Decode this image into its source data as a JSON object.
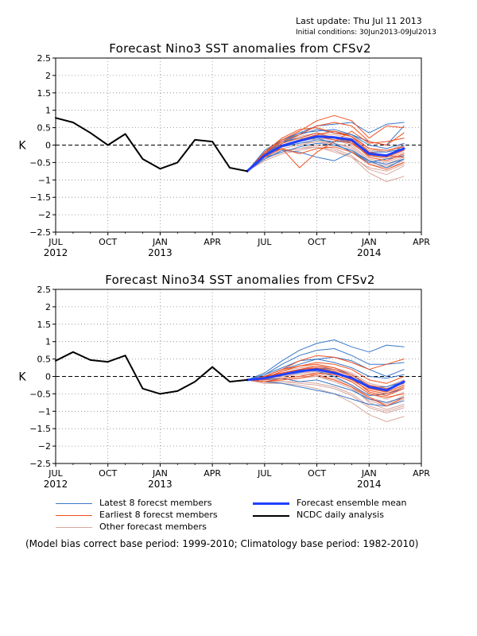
{
  "header": {
    "last_update": "Last update: Thu Jul 11 2013",
    "initial_condition": "Initial conditions: 30Jun2013-09Jul2013"
  },
  "colors": {
    "latest": "#3a78c8",
    "earliest": "#f05020",
    "other": "#d8a8a0",
    "mean": "#2040ff",
    "observed": "#000000"
  },
  "legend": {
    "latest": "Latest 8 forecst members",
    "earliest": "Earliest 8 forecst members",
    "other": "Other forecast members",
    "mean": "Forecast ensemble mean",
    "observed": "NCDC daily analysis"
  },
  "note": "(Model bias correct base period: 1999-2010; Climatology base period: 1982-2010)",
  "chart_data": [
    {
      "type": "line",
      "title": "Forecast Nino3 SST anomalies from CFSv2",
      "ylabel": "K",
      "ylim": [
        -2.5,
        2.5
      ],
      "yticks": [
        "2.5",
        "2",
        "1.5",
        "1",
        "0.5",
        "0",
        "−0.5",
        "−1",
        "−1.5",
        "−2",
        "−2.5"
      ],
      "xticks": [
        {
          "label": "JUL",
          "year": "2012"
        },
        {
          "label": "OCT",
          "year": ""
        },
        {
          "label": "JAN",
          "year": "2013"
        },
        {
          "label": "APR",
          "year": ""
        },
        {
          "label": "JUL",
          "year": ""
        },
        {
          "label": "OCT",
          "year": ""
        },
        {
          "label": "JAN",
          "year": "2014"
        },
        {
          "label": "APR",
          "year": ""
        }
      ],
      "grid": true,
      "observed": {
        "x": [
          "Jul 2012",
          "Aug 2012",
          "Sep 2012",
          "Oct 2012",
          "Nov 2012",
          "Dec 2012",
          "Jan 2013",
          "Feb 2013",
          "Mar 2013",
          "Apr 2013",
          "May 2013",
          "Jun 2013"
        ],
        "y": [
          0.78,
          0.65,
          0.35,
          0.0,
          0.32,
          -0.4,
          -0.68,
          -0.5,
          0.15,
          0.1,
          -0.65,
          -0.75
        ]
      },
      "forecast_months": [
        "Jun 2013",
        "Jul 2013",
        "Aug 2013",
        "Sep 2013",
        "Oct 2013",
        "Nov 2013",
        "Dec 2013",
        "Jan 2014",
        "Feb 2014",
        "Mar 2014"
      ],
      "mean": [
        -0.75,
        -0.3,
        -0.02,
        0.12,
        0.25,
        0.22,
        0.15,
        -0.25,
        -0.3,
        -0.1
      ],
      "latest": [
        [
          -0.75,
          -0.4,
          -0.15,
          -0.2,
          -0.35,
          -0.45,
          -0.2,
          -0.45,
          -0.65,
          -0.4
        ],
        [
          -0.75,
          -0.2,
          0.1,
          0.35,
          0.55,
          0.6,
          0.65,
          0.35,
          0.6,
          0.65
        ],
        [
          -0.75,
          -0.3,
          0.0,
          0.15,
          0.2,
          0.05,
          -0.2,
          -0.5,
          -0.4,
          -0.3
        ],
        [
          -0.75,
          -0.25,
          0.05,
          0.3,
          0.45,
          0.35,
          0.3,
          0.0,
          -0.1,
          0.05
        ],
        [
          -0.75,
          -0.35,
          -0.2,
          -0.05,
          0.05,
          0.0,
          -0.15,
          -0.45,
          -0.55,
          -0.4
        ],
        [
          -0.75,
          -0.25,
          0.1,
          0.2,
          0.35,
          0.2,
          0.05,
          -0.3,
          -0.35,
          0.0
        ],
        [
          -0.75,
          -0.3,
          -0.05,
          0.05,
          0.15,
          0.1,
          0.1,
          -0.2,
          -0.2,
          -0.1
        ],
        [
          -0.75,
          -0.15,
          0.15,
          0.35,
          0.4,
          0.45,
          0.3,
          0.1,
          0.0,
          0.55
        ]
      ],
      "earliest": [
        [
          -0.75,
          -0.25,
          0.15,
          0.4,
          0.7,
          0.85,
          0.7,
          0.2,
          0.55,
          0.5
        ],
        [
          -0.75,
          -0.2,
          0.1,
          0.3,
          0.55,
          0.65,
          0.55,
          0.1,
          0.0,
          0.35
        ],
        [
          -0.75,
          -0.3,
          0.05,
          0.2,
          0.35,
          0.2,
          0.1,
          -0.35,
          -0.45,
          -0.25
        ],
        [
          -0.75,
          -0.35,
          -0.1,
          -0.25,
          -0.1,
          -0.05,
          -0.2,
          -0.55,
          -0.7,
          -0.5
        ],
        [
          -0.75,
          -0.2,
          0.2,
          0.45,
          0.5,
          0.35,
          0.25,
          -0.1,
          -0.15,
          -0.05
        ],
        [
          -0.75,
          -0.3,
          0.0,
          0.1,
          0.25,
          0.15,
          0.05,
          -0.3,
          -0.35,
          -0.15
        ],
        [
          -0.75,
          -0.25,
          -0.1,
          -0.65,
          -0.2,
          0.1,
          0.4,
          0.05,
          0.1,
          0.2
        ],
        [
          -0.75,
          -0.3,
          -0.05,
          0.15,
          0.3,
          0.4,
          0.25,
          -0.2,
          -0.3,
          -0.35
        ]
      ],
      "other": [
        [
          -0.75,
          -0.4,
          -0.2,
          -0.1,
          0.0,
          -0.1,
          -0.3,
          -0.7,
          -0.85,
          -0.6
        ],
        [
          -0.75,
          -0.35,
          -0.05,
          0.1,
          0.2,
          0.15,
          0.0,
          -0.4,
          -0.5,
          -0.3
        ],
        [
          -0.75,
          -0.3,
          0.0,
          0.15,
          0.3,
          0.25,
          0.1,
          -0.3,
          -0.4,
          -0.2
        ],
        [
          -0.75,
          -0.45,
          -0.25,
          -0.15,
          -0.05,
          -0.15,
          -0.35,
          -0.8,
          -1.05,
          -0.9
        ],
        [
          -0.75,
          -0.25,
          0.05,
          0.25,
          0.35,
          0.3,
          0.2,
          -0.15,
          -0.2,
          0.0
        ],
        [
          -0.75,
          -0.3,
          -0.1,
          0.0,
          0.1,
          0.05,
          -0.1,
          -0.5,
          -0.6,
          -0.45
        ],
        [
          -0.75,
          -0.35,
          0.05,
          0.2,
          0.15,
          0.05,
          -0.05,
          -0.45,
          -0.55,
          -0.35
        ],
        [
          -0.75,
          -0.4,
          -0.15,
          -0.1,
          -0.05,
          -0.2,
          -0.35,
          -0.65,
          -0.75,
          -0.55
        ],
        [
          -0.75,
          -0.2,
          0.15,
          0.3,
          0.45,
          0.4,
          0.3,
          -0.1,
          -0.2,
          0.05
        ],
        [
          -0.75,
          -0.3,
          -0.05,
          0.05,
          0.1,
          0.0,
          -0.15,
          -0.55,
          -0.65,
          -0.5
        ]
      ]
    },
    {
      "type": "line",
      "title": "Forecast Nino34 SST anomalies from CFSv2",
      "ylabel": "K",
      "ylim": [
        -2.5,
        2.5
      ],
      "yticks": [
        "2.5",
        "2",
        "1.5",
        "1",
        "0.5",
        "0",
        "−0.5",
        "−1",
        "−1.5",
        "−2",
        "−2.5"
      ],
      "xticks": [
        {
          "label": "JUL",
          "year": "2012"
        },
        {
          "label": "OCT",
          "year": ""
        },
        {
          "label": "JAN",
          "year": "2013"
        },
        {
          "label": "APR",
          "year": ""
        },
        {
          "label": "JUL",
          "year": ""
        },
        {
          "label": "OCT",
          "year": ""
        },
        {
          "label": "JAN",
          "year": "2014"
        },
        {
          "label": "APR",
          "year": ""
        }
      ],
      "grid": true,
      "observed": {
        "x": [
          "Jul 2012",
          "Aug 2012",
          "Sep 2012",
          "Oct 2012",
          "Nov 2012",
          "Dec 2012",
          "Jan 2013",
          "Feb 2013",
          "Mar 2013",
          "Apr 2013",
          "May 2013",
          "Jun 2013"
        ],
        "y": [
          0.45,
          0.7,
          0.47,
          0.42,
          0.6,
          -0.35,
          -0.5,
          -0.42,
          -0.15,
          0.27,
          -0.15,
          -0.1
        ]
      },
      "forecast_months": [
        "Jun 2013",
        "Jul 2013",
        "Aug 2013",
        "Sep 2013",
        "Oct 2013",
        "Nov 2013",
        "Dec 2013",
        "Jan 2014",
        "Feb 2014",
        "Mar 2014"
      ],
      "mean": [
        -0.1,
        -0.05,
        0.05,
        0.15,
        0.2,
        0.1,
        -0.05,
        -0.3,
        -0.4,
        -0.15
      ],
      "latest": [
        [
          -0.1,
          0.1,
          0.45,
          0.75,
          0.95,
          1.05,
          0.85,
          0.7,
          0.9,
          0.85
        ],
        [
          -0.1,
          0.05,
          0.35,
          0.6,
          0.75,
          0.8,
          0.6,
          0.35,
          0.35,
          0.4
        ],
        [
          -0.1,
          -0.1,
          0.1,
          0.2,
          0.15,
          0.0,
          -0.25,
          -0.55,
          -0.5,
          -0.35
        ],
        [
          -0.1,
          0.0,
          0.2,
          0.35,
          0.5,
          0.4,
          0.25,
          0.0,
          -0.05,
          0.05
        ],
        [
          -0.1,
          -0.15,
          -0.2,
          -0.3,
          -0.4,
          -0.5,
          -0.65,
          -0.8,
          -0.85,
          -0.7
        ],
        [
          -0.1,
          -0.05,
          0.05,
          0.1,
          0.25,
          0.2,
          0.05,
          -0.3,
          -0.3,
          -0.15
        ],
        [
          -0.1,
          -0.1,
          -0.05,
          -0.15,
          -0.1,
          -0.25,
          -0.4,
          -0.65,
          -0.75,
          -0.6
        ],
        [
          -0.1,
          0.05,
          0.25,
          0.45,
          0.5,
          0.55,
          0.45,
          0.2,
          0.0,
          0.2
        ]
      ],
      "earliest": [
        [
          -0.1,
          0.0,
          0.2,
          0.45,
          0.6,
          0.55,
          0.4,
          0.2,
          0.35,
          0.5
        ],
        [
          -0.1,
          -0.05,
          0.15,
          0.3,
          0.4,
          0.35,
          0.2,
          -0.1,
          -0.2,
          0.0
        ],
        [
          -0.1,
          -0.1,
          0.05,
          0.15,
          0.25,
          0.1,
          -0.1,
          -0.4,
          -0.5,
          -0.3
        ],
        [
          -0.1,
          -0.15,
          -0.1,
          -0.05,
          0.05,
          -0.1,
          -0.3,
          -0.6,
          -0.85,
          -0.6
        ],
        [
          -0.1,
          0.0,
          0.2,
          0.3,
          0.35,
          0.25,
          0.05,
          -0.25,
          -0.35,
          -0.2
        ],
        [
          -0.1,
          -0.05,
          0.1,
          0.2,
          0.3,
          0.2,
          0.0,
          -0.35,
          -0.45,
          -0.25
        ],
        [
          -0.1,
          -0.15,
          -0.05,
          0.0,
          0.1,
          0.05,
          -0.15,
          -0.5,
          -0.6,
          -0.5
        ],
        [
          -0.1,
          0.0,
          0.1,
          0.2,
          0.25,
          0.15,
          -0.05,
          -0.45,
          -0.55,
          -0.35
        ]
      ],
      "other": [
        [
          -0.1,
          -0.2,
          -0.15,
          -0.2,
          -0.25,
          -0.35,
          -0.55,
          -0.9,
          -1.05,
          -0.9
        ],
        [
          -0.1,
          -0.15,
          -0.05,
          0.0,
          0.0,
          -0.15,
          -0.35,
          -0.7,
          -0.85,
          -0.65
        ],
        [
          -0.1,
          -0.1,
          0.0,
          0.1,
          0.15,
          0.05,
          -0.15,
          -0.5,
          -0.65,
          -0.45
        ],
        [
          -0.1,
          -0.2,
          -0.2,
          -0.25,
          -0.35,
          -0.5,
          -0.75,
          -1.1,
          -1.3,
          -1.15
        ],
        [
          -0.1,
          -0.05,
          0.1,
          0.2,
          0.25,
          0.15,
          -0.05,
          -0.35,
          -0.45,
          -0.25
        ],
        [
          -0.1,
          -0.1,
          0.05,
          0.1,
          0.1,
          -0.05,
          -0.25,
          -0.6,
          -0.75,
          -0.6
        ],
        [
          -0.1,
          -0.15,
          -0.1,
          -0.05,
          0.0,
          -0.1,
          -0.3,
          -0.75,
          -0.95,
          -0.8
        ],
        [
          -0.1,
          -0.05,
          0.15,
          0.25,
          0.3,
          0.25,
          0.1,
          -0.2,
          -0.3,
          -0.1
        ],
        [
          -0.1,
          -0.1,
          0.0,
          0.05,
          0.05,
          -0.1,
          -0.3,
          -0.65,
          -0.8,
          -0.55
        ],
        [
          -0.1,
          -0.15,
          -0.15,
          -0.15,
          -0.2,
          -0.3,
          -0.5,
          -0.85,
          -1.0,
          -0.85
        ]
      ]
    }
  ]
}
